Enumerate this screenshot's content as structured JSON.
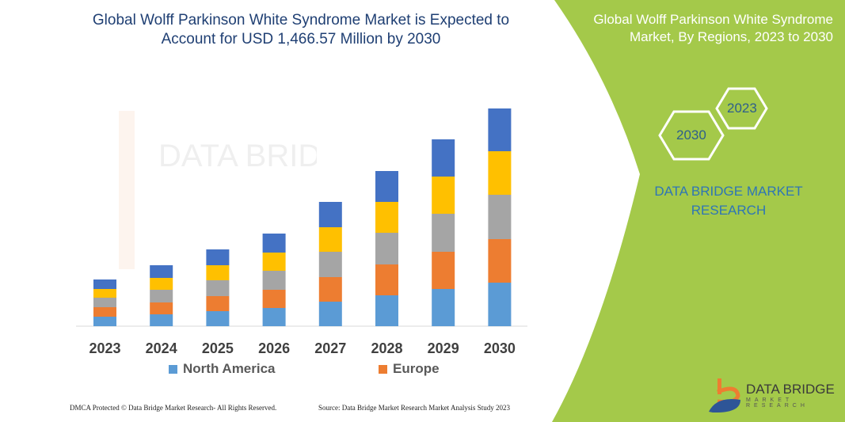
{
  "title": "Global Wolff Parkinson White Syndrome Market is Expected to Account for USD 1,466.57 Million by 2030",
  "side_panel": {
    "title": "Global Wolff Parkinson White Syndrome Market, By Regions, 2023 to 2030",
    "hex_labels": [
      "2023",
      "2030"
    ],
    "brand_text": "DATA BRIDGE MARKET RESEARCH",
    "logo_text": "DATA BRIDGE MARKET RESEARCH",
    "background_color": "#a4c94a"
  },
  "footer": {
    "left": "DMCA Protected © Data Bridge Market Research-  All Rights Reserved.",
    "right": "Source:  Data Bridge Market Research  Market Analysis Study 2023"
  },
  "chart_data": {
    "type": "bar",
    "stacked": true,
    "categories": [
      "2023",
      "2024",
      "2025",
      "2026",
      "2027",
      "2028",
      "2029",
      "2030"
    ],
    "series": [
      {
        "name": "North America",
        "color": "#5b9bd5",
        "values": [
          12,
          15,
          19,
          23,
          31,
          39,
          47,
          55
        ]
      },
      {
        "name": "Europe",
        "color": "#ed7d31",
        "values": [
          12,
          15,
          19,
          23,
          31,
          39,
          47,
          55
        ]
      },
      {
        "color": "#a5a5a5",
        "values": [
          12,
          16,
          20,
          24,
          32,
          40,
          48,
          56
        ]
      },
      {
        "color": "#ffc000",
        "values": [
          11,
          15,
          19,
          23,
          31,
          39,
          47,
          55
        ]
      },
      {
        "color": "#4472c4",
        "values": [
          12,
          16,
          20,
          24,
          32,
          39,
          47,
          54
        ]
      }
    ],
    "legend_position": "bottom",
    "grid": false
  }
}
